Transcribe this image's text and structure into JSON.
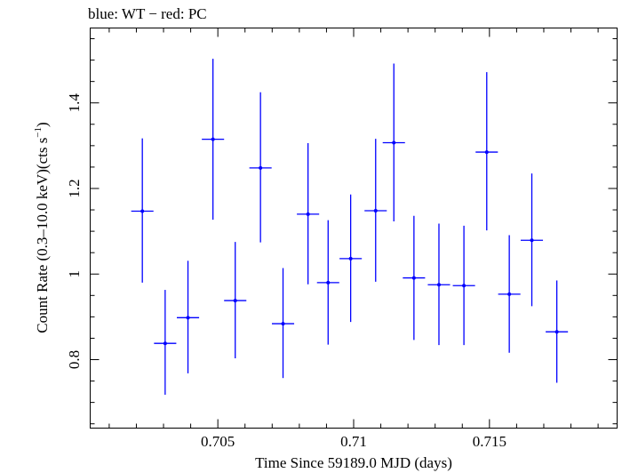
{
  "chart_data": {
    "type": "scatter",
    "title": "blue: WT − red: PC",
    "xlabel": "Time Since 59189.0 MJD (days)",
    "ylabel": {
      "main": "Count Rate (0.3–10.0 keV)(cts s",
      "sup": "−1",
      "close": ")"
    },
    "xlim": [
      0.7003,
      0.7197
    ],
    "ylim": [
      0.64,
      1.575
    ],
    "x_ticks": [
      0.705,
      0.71,
      0.715
    ],
    "x_tick_labels": [
      "0.705",
      "0.71",
      "0.715"
    ],
    "y_ticks": [
      0.8,
      1.0,
      1.2,
      1.4
    ],
    "y_tick_labels": [
      "0.8",
      "1",
      "1.2",
      "1.4"
    ],
    "grid": false,
    "legend": "none",
    "series": [
      {
        "color": "#0000ff",
        "points": [
          {
            "x": 0.70222,
            "xerr": 0.00041,
            "y": 1.147,
            "yerr_lo": 0.167,
            "yerr_hi": 0.17
          },
          {
            "x": 0.70306,
            "xerr": 0.00041,
            "y": 0.838,
            "yerr_lo": 0.12,
            "yerr_hi": 0.125
          },
          {
            "x": 0.7039,
            "xerr": 0.00041,
            "y": 0.898,
            "yerr_lo": 0.13,
            "yerr_hi": 0.133
          },
          {
            "x": 0.70482,
            "xerr": 0.00041,
            "y": 1.315,
            "yerr_lo": 0.188,
            "yerr_hi": 0.188
          },
          {
            "x": 0.70564,
            "xerr": 0.00041,
            "y": 0.938,
            "yerr_lo": 0.135,
            "yerr_hi": 0.137
          },
          {
            "x": 0.70657,
            "xerr": 0.00041,
            "y": 1.248,
            "yerr_lo": 0.174,
            "yerr_hi": 0.177
          },
          {
            "x": 0.7074,
            "xerr": 0.00041,
            "y": 0.884,
            "yerr_lo": 0.127,
            "yerr_hi": 0.13
          },
          {
            "x": 0.70832,
            "xerr": 0.00041,
            "y": 1.14,
            "yerr_lo": 0.164,
            "yerr_hi": 0.166
          },
          {
            "x": 0.70906,
            "xerr": 0.00041,
            "y": 0.98,
            "yerr_lo": 0.145,
            "yerr_hi": 0.146
          },
          {
            "x": 0.70989,
            "xerr": 0.00041,
            "y": 1.036,
            "yerr_lo": 0.148,
            "yerr_hi": 0.15
          },
          {
            "x": 0.71081,
            "xerr": 0.00041,
            "y": 1.148,
            "yerr_lo": 0.166,
            "yerr_hi": 0.168
          },
          {
            "x": 0.71148,
            "xerr": 0.00041,
            "y": 1.307,
            "yerr_lo": 0.184,
            "yerr_hi": 0.185
          },
          {
            "x": 0.71222,
            "xerr": 0.00041,
            "y": 0.991,
            "yerr_lo": 0.145,
            "yerr_hi": 0.145
          },
          {
            "x": 0.71314,
            "xerr": 0.00041,
            "y": 0.975,
            "yerr_lo": 0.141,
            "yerr_hi": 0.143
          },
          {
            "x": 0.71406,
            "xerr": 0.00041,
            "y": 0.973,
            "yerr_lo": 0.139,
            "yerr_hi": 0.14
          },
          {
            "x": 0.7149,
            "xerr": 0.00041,
            "y": 1.285,
            "yerr_lo": 0.183,
            "yerr_hi": 0.187
          },
          {
            "x": 0.71573,
            "xerr": 0.00041,
            "y": 0.953,
            "yerr_lo": 0.137,
            "yerr_hi": 0.138
          },
          {
            "x": 0.71656,
            "xerr": 0.00041,
            "y": 1.079,
            "yerr_lo": 0.154,
            "yerr_hi": 0.156
          },
          {
            "x": 0.71748,
            "xerr": 0.00041,
            "y": 0.865,
            "yerr_lo": 0.119,
            "yerr_hi": 0.12
          }
        ]
      }
    ]
  }
}
